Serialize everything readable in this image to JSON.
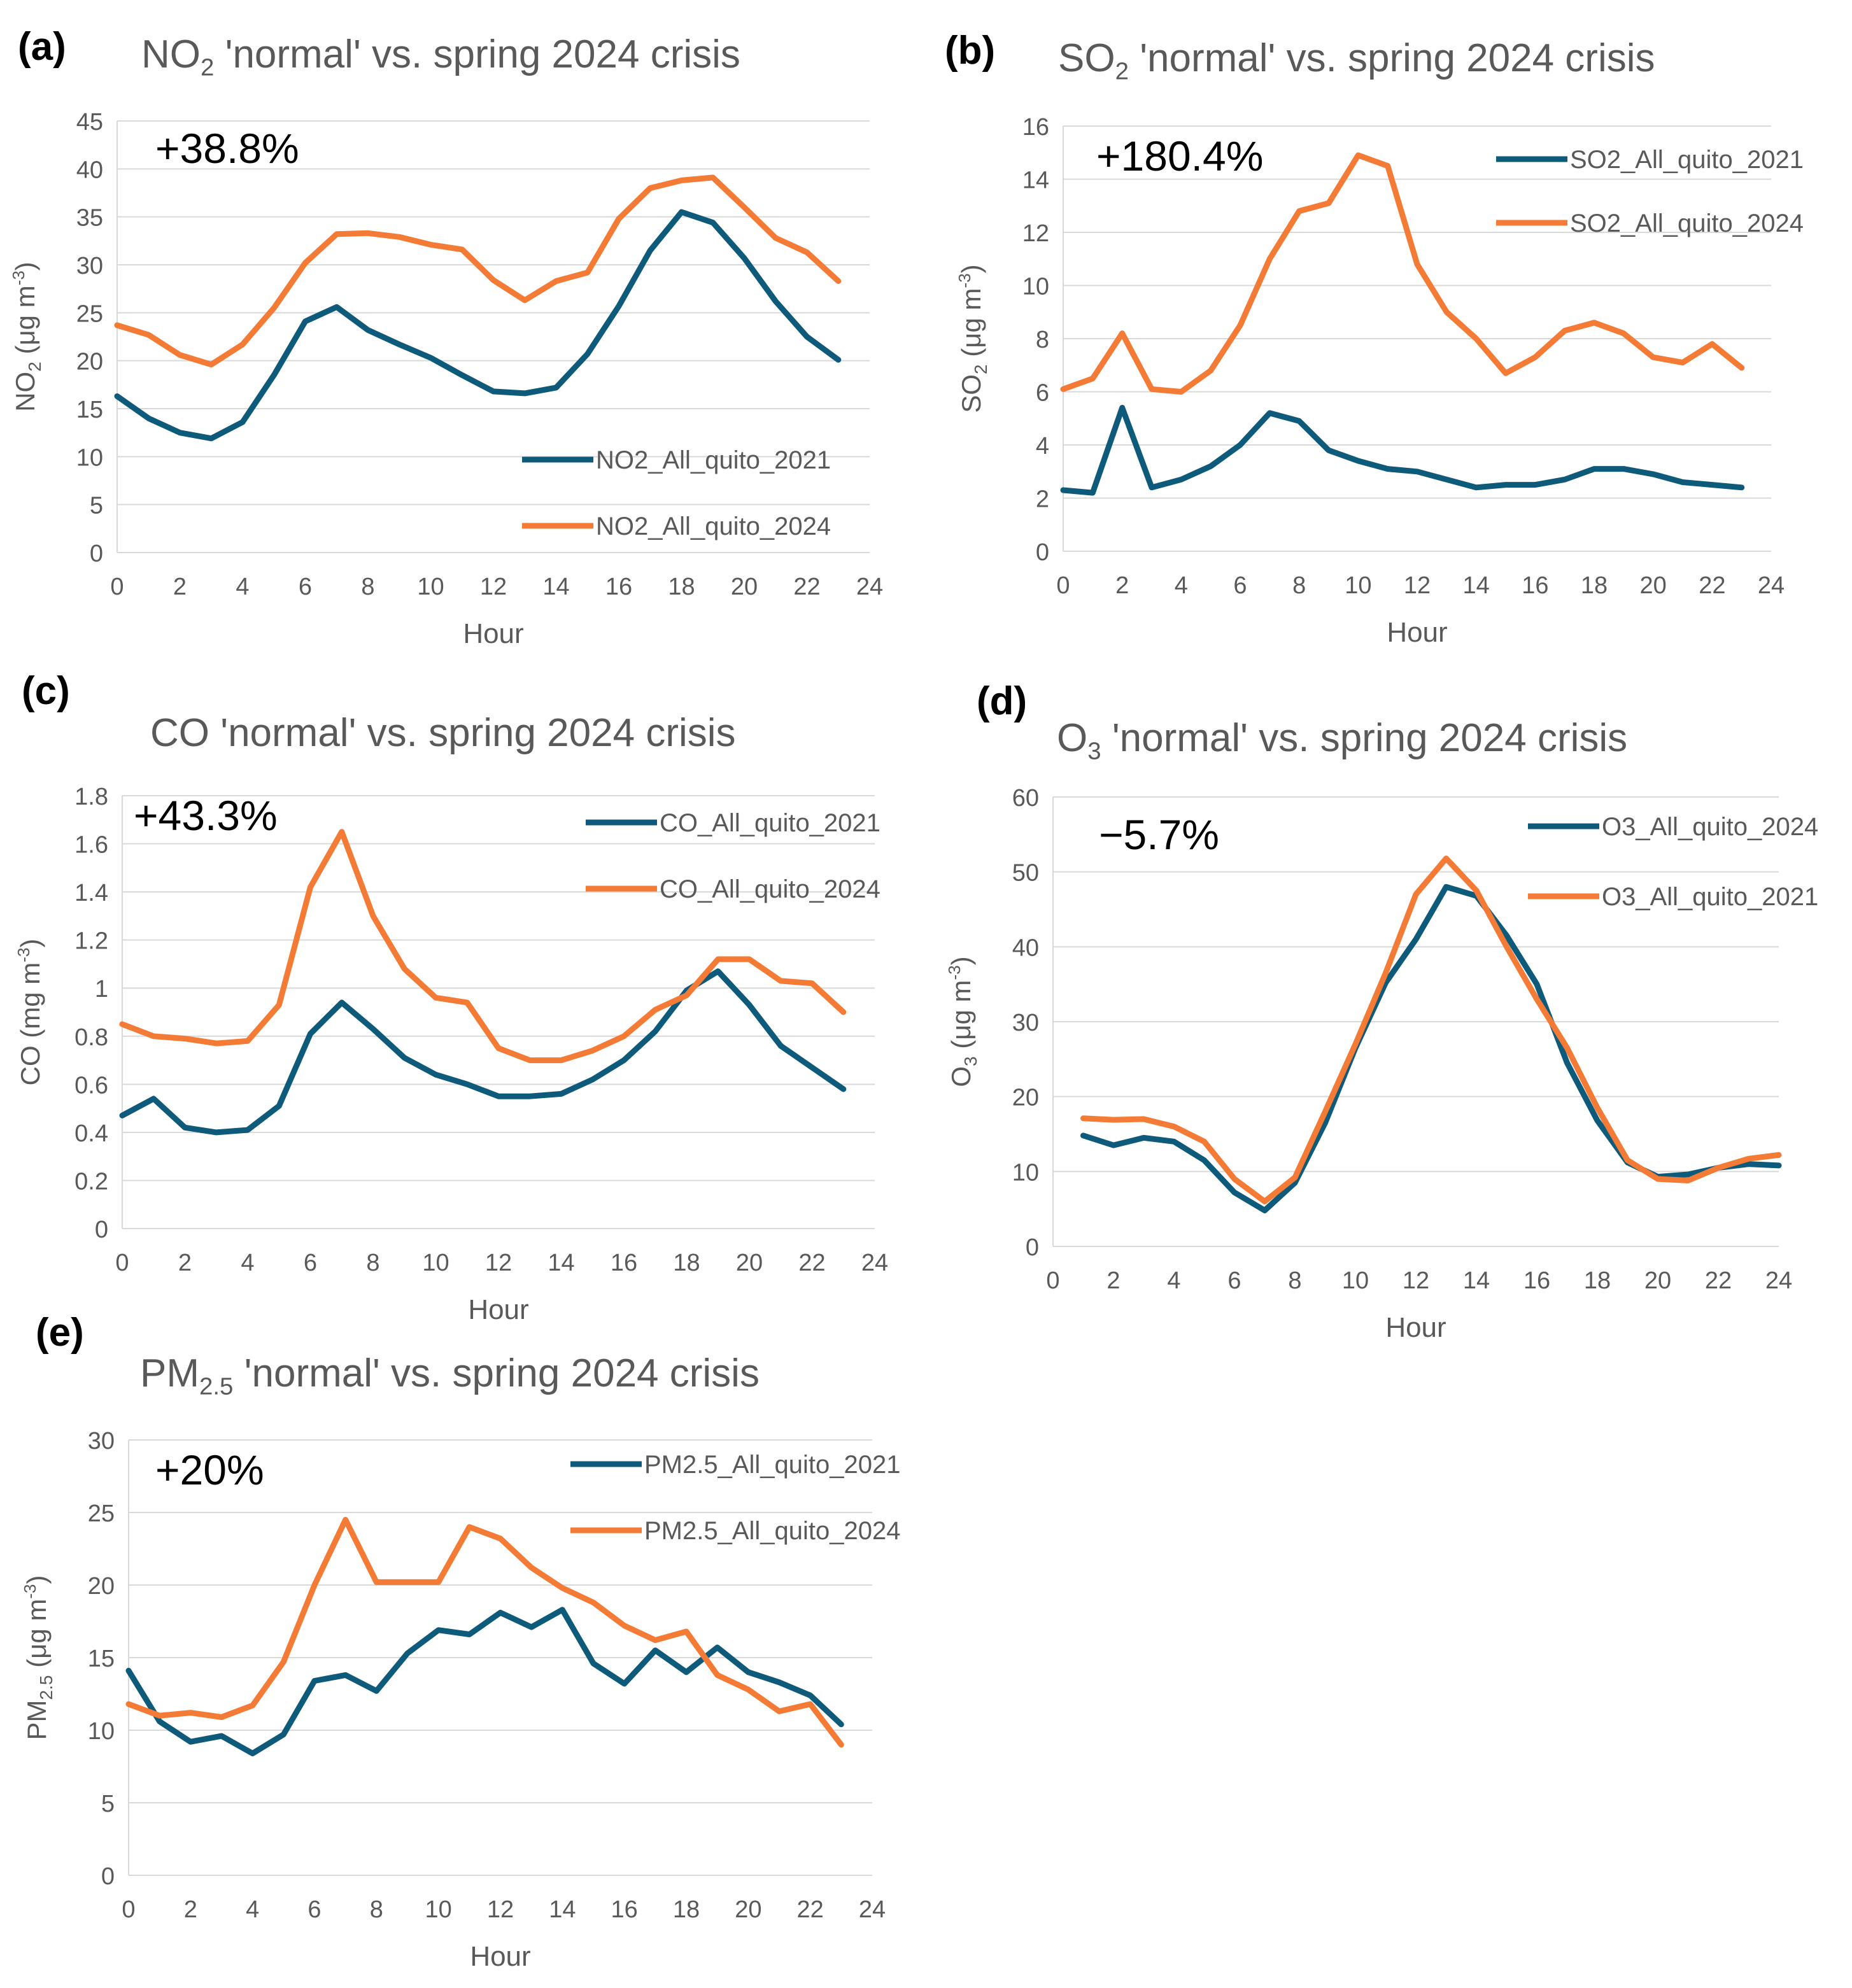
{
  "colors": {
    "series_2021": "#0E5A7A",
    "series_2024": "#F47B35",
    "grid": "#D9D9D9",
    "axis_text": "#595959",
    "title": "#595959"
  },
  "chart_data": [
    {
      "id": "a",
      "type": "line",
      "panel_label": "(a)",
      "title": {
        "pre": "NO",
        "sub": "2",
        "post": " 'normal' vs. spring 2024 crisis"
      },
      "ylabel": {
        "pre": "NO",
        "sub": "2",
        "post": " (μg m",
        "sup": "-3",
        "end": ")"
      },
      "xlabel": "Hour",
      "change_label": "+38.8%",
      "xlim": [
        0,
        24
      ],
      "xticks": [
        0,
        2,
        4,
        6,
        8,
        10,
        12,
        14,
        16,
        18,
        20,
        22,
        24
      ],
      "ylim": [
        0,
        45
      ],
      "yticks": [
        0,
        5,
        10,
        15,
        20,
        25,
        30,
        35,
        40,
        45
      ],
      "x": [
        0,
        1,
        2,
        3,
        4,
        5,
        6,
        7,
        8,
        9,
        10,
        11,
        12,
        13,
        14,
        15,
        16,
        17,
        18,
        19,
        20,
        21,
        22,
        23
      ],
      "legend_position": "bottom-right",
      "series": [
        {
          "name": "NO2_All_quito_2021",
          "color": "#0E5A7A",
          "values": [
            16.3,
            14.0,
            12.5,
            11.9,
            13.6,
            18.5,
            24.1,
            25.6,
            23.2,
            21.7,
            20.3,
            18.5,
            16.8,
            16.6,
            17.2,
            20.7,
            25.7,
            31.5,
            35.5,
            34.4,
            30.7,
            26.2,
            22.5,
            20.1
          ]
        },
        {
          "name": "NO2_All_quito_2024",
          "color": "#F47B35",
          "values": [
            23.7,
            22.7,
            20.6,
            19.6,
            21.7,
            25.5,
            30.2,
            33.2,
            33.3,
            32.9,
            32.1,
            31.6,
            28.4,
            26.3,
            28.3,
            29.2,
            34.8,
            38.0,
            38.8,
            39.1,
            36.0,
            32.8,
            31.3,
            28.3
          ]
        }
      ]
    },
    {
      "id": "b",
      "type": "line",
      "panel_label": "(b)",
      "title": {
        "pre": "SO",
        "sub": "2",
        "post": " 'normal' vs. spring 2024 crisis"
      },
      "ylabel": {
        "pre": "SO",
        "sub": "2",
        "post": " (μg m",
        "sup": "-3",
        "end": ")"
      },
      "xlabel": "Hour",
      "change_label": "+180.4%",
      "xlim": [
        0,
        24
      ],
      "xticks": [
        0,
        2,
        4,
        6,
        8,
        10,
        12,
        14,
        16,
        18,
        20,
        22,
        24
      ],
      "ylim": [
        0,
        16
      ],
      "yticks": [
        0,
        2,
        4,
        6,
        8,
        10,
        12,
        14,
        16
      ],
      "x": [
        0,
        1,
        2,
        3,
        4,
        5,
        6,
        7,
        8,
        9,
        10,
        11,
        12,
        13,
        14,
        15,
        16,
        17,
        18,
        19,
        20,
        21,
        22,
        23
      ],
      "legend_position": "top-right",
      "series": [
        {
          "name": "SO2_All_quito_2021",
          "color": "#0E5A7A",
          "values": [
            2.3,
            2.2,
            5.4,
            2.4,
            2.7,
            3.2,
            4.0,
            5.2,
            4.9,
            3.8,
            3.4,
            3.1,
            3.0,
            2.7,
            2.4,
            2.5,
            2.5,
            2.7,
            3.1,
            3.1,
            2.9,
            2.6,
            2.5,
            2.4
          ]
        },
        {
          "name": "SO2_All_quito_2024",
          "color": "#F47B35",
          "values": [
            6.1,
            6.5,
            8.2,
            6.1,
            6.0,
            6.8,
            8.5,
            11.0,
            12.8,
            13.1,
            14.9,
            14.5,
            10.8,
            9.0,
            8.0,
            6.7,
            7.3,
            8.3,
            8.6,
            8.2,
            7.3,
            7.1,
            7.8,
            6.9
          ]
        }
      ]
    },
    {
      "id": "c",
      "type": "line",
      "panel_label": "(c)",
      "title": {
        "pre": "CO 'normal' vs. spring 2024 crisis",
        "sub": "",
        "post": ""
      },
      "ylabel": {
        "pre": "CO (mg m",
        "sub": "",
        "post": "",
        "sup": "-3",
        "end": ")"
      },
      "xlabel": "Hour",
      "change_label": "+43.3%",
      "xlim": [
        0,
        24
      ],
      "xticks": [
        0,
        2,
        4,
        6,
        8,
        10,
        12,
        14,
        16,
        18,
        20,
        22,
        24
      ],
      "ylim": [
        0,
        1.8
      ],
      "yticks": [
        0,
        0.2,
        0.4,
        0.6,
        0.8,
        1,
        1.2,
        1.4,
        1.6,
        1.8
      ],
      "x": [
        0,
        1,
        2,
        3,
        4,
        5,
        6,
        7,
        8,
        9,
        10,
        11,
        12,
        13,
        14,
        15,
        16,
        17,
        18,
        19,
        20,
        21,
        22,
        23
      ],
      "legend_position": "top-right",
      "series": [
        {
          "name": "CO_All_quito_2021",
          "color": "#0E5A7A",
          "values": [
            0.47,
            0.54,
            0.42,
            0.4,
            0.41,
            0.51,
            0.81,
            0.94,
            0.83,
            0.71,
            0.64,
            0.6,
            0.55,
            0.55,
            0.56,
            0.62,
            0.7,
            0.82,
            0.99,
            1.07,
            0.93,
            0.76,
            0.67,
            0.58
          ]
        },
        {
          "name": "CO_All_quito_2024",
          "color": "#F47B35",
          "values": [
            0.85,
            0.8,
            0.79,
            0.77,
            0.78,
            0.93,
            1.42,
            1.65,
            1.3,
            1.08,
            0.96,
            0.94,
            0.75,
            0.7,
            0.7,
            0.74,
            0.8,
            0.91,
            0.97,
            1.12,
            1.12,
            1.03,
            1.02,
            0.9
          ]
        }
      ]
    },
    {
      "id": "d",
      "type": "line",
      "panel_label": "(d)",
      "title": {
        "pre": "O",
        "sub": "3",
        "post": " 'normal' vs. spring 2024 crisis"
      },
      "ylabel": {
        "pre": "O",
        "sub": "3",
        "post": " (μg m",
        "sup": "-3",
        "end": ")"
      },
      "xlabel": "Hour",
      "change_label": "−5.7%",
      "xlim": [
        0,
        24
      ],
      "xticks": [
        0,
        2,
        4,
        6,
        8,
        10,
        12,
        14,
        16,
        18,
        20,
        22,
        24
      ],
      "ylim": [
        0,
        60
      ],
      "yticks": [
        0,
        10,
        20,
        30,
        40,
        50,
        60
      ],
      "x": [
        1,
        2,
        3,
        4,
        5,
        6,
        7,
        8,
        9,
        10,
        11,
        12,
        13,
        14,
        15,
        16,
        17,
        18,
        19,
        20,
        21,
        22,
        23,
        24
      ],
      "legend_position": "top-right",
      "series": [
        {
          "name": "O3_All_quito_2024",
          "color": "#0E5A7A",
          "values": [
            14.8,
            13.5,
            14.5,
            14.0,
            11.5,
            7.2,
            4.8,
            8.5,
            16.5,
            26.5,
            35.2,
            41.0,
            48.0,
            46.8,
            41.5,
            35.0,
            24.5,
            16.8,
            11.2,
            9.3,
            9.6,
            10.5,
            11.0,
            10.8
          ]
        },
        {
          "name": "O3_All_quito_2021",
          "color": "#F47B35",
          "values": [
            17.1,
            16.9,
            17.0,
            16.0,
            14.0,
            9.0,
            6.0,
            9.2,
            18.0,
            27.0,
            36.5,
            47.0,
            51.8,
            47.5,
            40.0,
            33.0,
            26.5,
            18.5,
            11.5,
            9.0,
            8.8,
            10.5,
            11.7,
            12.2
          ]
        }
      ]
    },
    {
      "id": "e",
      "type": "line",
      "panel_label": "(e)",
      "title": {
        "pre": "PM",
        "sub": "2.5",
        "post": " 'normal' vs. spring 2024 crisis"
      },
      "ylabel": {
        "pre": "PM",
        "sub": "2.5",
        "post": " (μg m",
        "sup": "-3",
        "end": ")"
      },
      "xlabel": "Hour",
      "change_label": "+20%",
      "xlim": [
        0,
        24
      ],
      "xticks": [
        0,
        2,
        4,
        6,
        8,
        10,
        12,
        14,
        16,
        18,
        20,
        22,
        24
      ],
      "ylim": [
        0,
        30
      ],
      "yticks": [
        0,
        5,
        10,
        15,
        20,
        25,
        30
      ],
      "x": [
        0,
        1,
        2,
        3,
        4,
        5,
        6,
        7,
        8,
        9,
        10,
        11,
        12,
        13,
        14,
        15,
        16,
        17,
        18,
        19,
        20,
        21,
        22,
        23
      ],
      "legend_position": "top-right",
      "series": [
        {
          "name": "PM2.5_All_quito_2021",
          "color": "#0E5A7A",
          "values": [
            14.1,
            10.6,
            9.2,
            9.6,
            8.4,
            9.7,
            13.4,
            13.8,
            12.7,
            15.3,
            16.9,
            16.6,
            18.1,
            17.1,
            18.3,
            14.6,
            13.2,
            15.5,
            14.0,
            15.7,
            14.0,
            13.3,
            12.4,
            10.4
          ]
        },
        {
          "name": "PM2.5_All_quito_2024",
          "color": "#F47B35",
          "values": [
            11.8,
            11.0,
            11.2,
            10.9,
            11.7,
            14.7,
            20.0,
            24.5,
            20.2,
            20.2,
            20.2,
            24.0,
            23.2,
            21.2,
            19.8,
            18.8,
            17.2,
            16.2,
            16.8,
            13.8,
            12.8,
            11.3,
            11.8,
            9.0
          ]
        }
      ]
    }
  ]
}
